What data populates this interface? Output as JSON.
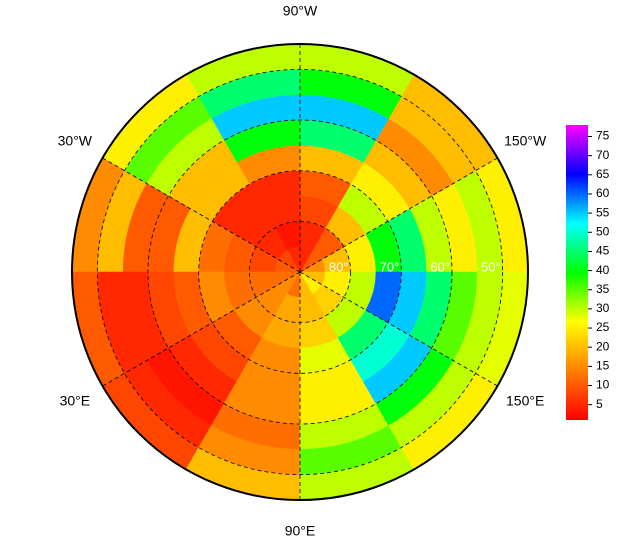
{
  "chart_data": {
    "type": "polar_heatmap",
    "lat_edges": [
      90,
      85,
      80,
      75,
      70,
      65,
      60,
      55,
      50,
      45
    ],
    "lon_edges": [
      -180,
      -150,
      -120,
      -90,
      -60,
      -30,
      0,
      30,
      60,
      90,
      120,
      150,
      180
    ],
    "values": [
      [
        15,
        10,
        5,
        5,
        8,
        10,
        12,
        15,
        12,
        20,
        25,
        20
      ],
      [
        20,
        10,
        5,
        3,
        5,
        8,
        12,
        15,
        18,
        20,
        22,
        25
      ],
      [
        25,
        20,
        8,
        5,
        5,
        10,
        12,
        15,
        18,
        22,
        30,
        30
      ],
      [
        40,
        30,
        10,
        5,
        5,
        12,
        15,
        10,
        15,
        28,
        45,
        60
      ],
      [
        45,
        25,
        20,
        15,
        20,
        20,
        10,
        8,
        15,
        25,
        50,
        55
      ],
      [
        30,
        20,
        45,
        40,
        20,
        10,
        8,
        5,
        15,
        25,
        55,
        45
      ],
      [
        25,
        15,
        55,
        55,
        30,
        10,
        5,
        3,
        12,
        30,
        40,
        35
      ],
      [
        30,
        20,
        40,
        45,
        35,
        20,
        5,
        5,
        15,
        35,
        30,
        30
      ],
      [
        25,
        20,
        30,
        30,
        25,
        15,
        10,
        8,
        20,
        30,
        25,
        28
      ]
    ],
    "colormap": [
      "#ff0000",
      "#ff8000",
      "#ffff00",
      "#00ff00",
      "#00ffff",
      "#0000ff",
      "#ff00ff"
    ],
    "clim": [
      1,
      78
    ],
    "colorbar_ticks": [
      5,
      10,
      15,
      20,
      25,
      30,
      35,
      40,
      45,
      50,
      55,
      60,
      65,
      70,
      75
    ],
    "lon_labels": [
      {
        "value": -90,
        "label": "90°W"
      },
      {
        "value": -150,
        "label": "150°W"
      },
      {
        "value": 150,
        "label": "150°E"
      },
      {
        "value": 90,
        "label": "90°E"
      },
      {
        "value": 30,
        "label": "30°E"
      },
      {
        "value": -30,
        "label": "30°W"
      }
    ],
    "lat_labels": [
      {
        "value": 80,
        "label": "80°"
      },
      {
        "value": 70,
        "label": "70°"
      },
      {
        "value": 60,
        "label": "60°"
      },
      {
        "value": 50,
        "label": "50°"
      }
    ]
  }
}
